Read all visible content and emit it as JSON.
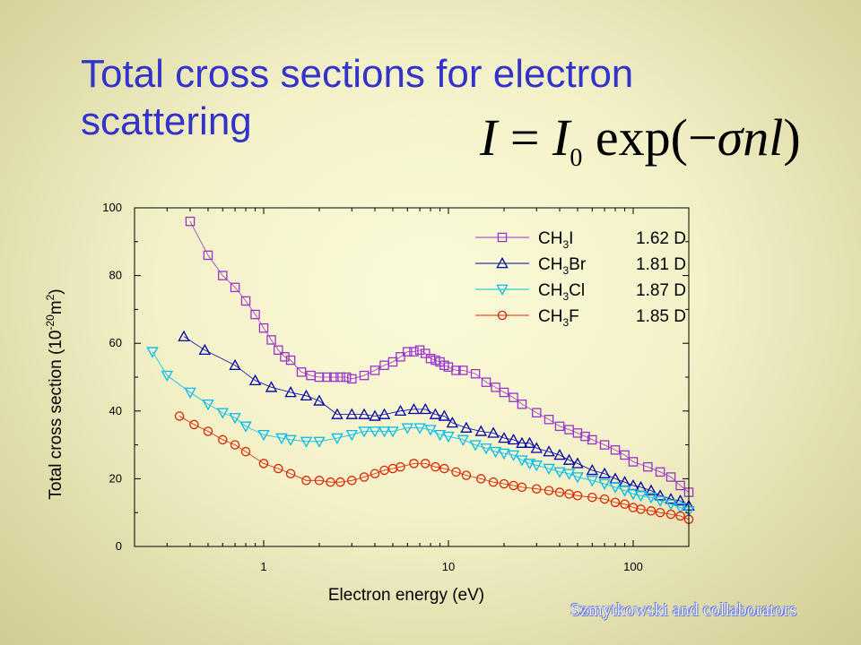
{
  "slide": {
    "title": "Total cross sections for electron scattering",
    "equation": {
      "lhs": "I",
      "eq": "=",
      "i0": "I",
      "i0_sub": "0",
      "func": "exp(",
      "minus": "−",
      "sigma": "σ",
      "n": "n",
      "l": "l",
      "close": ")"
    },
    "credit": "Szmytkowski and collaborators"
  },
  "chart_data": {
    "type": "scatter",
    "xlabel": "Electron energy (eV)",
    "ylabel": "Total cross section (10",
    "ylabel_exp": "-20",
    "ylabel_unit": "m",
    "ylabel_unit_exp": "2",
    "ylabel_close": ")",
    "xscale": "log",
    "xlim": [
      0.2,
      200
    ],
    "ylim": [
      0,
      100
    ],
    "xticks": [
      1,
      10,
      100
    ],
    "xtick_labels": [
      "1",
      "10",
      "100"
    ],
    "yticks": [
      0,
      20,
      40,
      60,
      80,
      100
    ],
    "ytick_labels": [
      "0",
      "20",
      "40",
      "60",
      "80",
      "100"
    ],
    "grid": false,
    "legend_position": "top-right",
    "series": [
      {
        "name": "CH3I",
        "name_main": "CH",
        "name_sub": "3",
        "name_rest": "I",
        "dipole": "1.62 D",
        "marker": "square",
        "color": "#9933cc",
        "x": [
          0.4,
          0.5,
          0.6,
          0.7,
          0.8,
          0.9,
          1.0,
          1.1,
          1.2,
          1.3,
          1.4,
          1.6,
          1.8,
          2.0,
          2.2,
          2.4,
          2.6,
          2.8,
          3.0,
          3.5,
          4.0,
          4.5,
          5.0,
          5.5,
          6.0,
          6.5,
          7.0,
          7.5,
          8.0,
          8.5,
          9.0,
          9.5,
          10,
          11,
          12,
          14,
          16,
          18,
          20,
          22.5,
          25,
          30,
          35,
          40,
          45,
          50,
          55,
          60,
          70,
          80,
          90,
          100,
          120,
          140,
          160,
          180,
          200
        ],
        "y": [
          96,
          86,
          80,
          76.5,
          72.5,
          68.5,
          64.5,
          61,
          58,
          56,
          55,
          51.5,
          50.5,
          50,
          50,
          50,
          50,
          50,
          49.5,
          50.5,
          52,
          53.5,
          54.5,
          56,
          57.5,
          57.5,
          58,
          57,
          55.5,
          55,
          54.5,
          53.5,
          53,
          52,
          52,
          51,
          48.5,
          47,
          45.5,
          44,
          42,
          39.5,
          37.5,
          35.5,
          34.5,
          33.5,
          32.5,
          31.5,
          30,
          28.5,
          27,
          25,
          23.5,
          22,
          20.5,
          18,
          16
        ]
      },
      {
        "name": "CH3Br",
        "name_main": "CH",
        "name_sub": "3",
        "name_rest": "Br",
        "dipole": "1.81 D",
        "marker": "triangle-up",
        "color": "#0000aa",
        "x": [
          0.37,
          0.48,
          0.7,
          0.9,
          1.1,
          1.4,
          1.7,
          2.0,
          2.5,
          3.0,
          3.5,
          4.0,
          4.5,
          5.5,
          6.5,
          7.5,
          8.5,
          9.5,
          10.5,
          12.5,
          15,
          17.5,
          20,
          22.5,
          25,
          27.5,
          30,
          35,
          40,
          45,
          50,
          60,
          70,
          80,
          90,
          100,
          110,
          125,
          140,
          160,
          180,
          200
        ],
        "y": [
          62,
          58,
          53.5,
          49,
          47,
          45.5,
          44.5,
          43,
          39,
          39,
          39,
          38.5,
          39,
          40,
          40.5,
          40.5,
          39,
          38.5,
          36.5,
          35,
          34,
          33.5,
          32,
          31.5,
          30.5,
          30.5,
          29,
          28,
          27,
          25.5,
          24.5,
          22.5,
          21.5,
          20,
          19,
          18,
          17.5,
          16.5,
          15,
          14,
          13.5,
          12
        ]
      },
      {
        "name": "CH3Cl",
        "name_main": "CH",
        "name_sub": "3",
        "name_rest": "Cl",
        "dipole": "1.87 D",
        "marker": "triangle-down",
        "color": "#00bbee",
        "x": [
          0.25,
          0.3,
          0.4,
          0.5,
          0.6,
          0.7,
          0.8,
          1.0,
          1.25,
          1.4,
          1.7,
          2.0,
          2.5,
          3.0,
          3.5,
          4.0,
          4.5,
          5.0,
          6.0,
          7.0,
          8.0,
          9.0,
          10,
          12,
          14,
          16,
          18,
          20,
          22.5,
          25,
          27.5,
          30,
          35,
          40,
          45,
          50,
          60,
          70,
          80,
          90,
          100,
          110,
          125,
          140,
          160,
          180,
          200
        ],
        "y": [
          57.5,
          50.5,
          45.5,
          42,
          39.5,
          38,
          35.5,
          33,
          32,
          31.5,
          31,
          31,
          32,
          33,
          34,
          34,
          34,
          34,
          35,
          35,
          34.5,
          33,
          32.5,
          31.5,
          30,
          29,
          28,
          27.5,
          27,
          25.5,
          24.5,
          24,
          23,
          22,
          21.5,
          20.5,
          19.5,
          18.5,
          17.5,
          16.5,
          15.5,
          15,
          14.5,
          13.5,
          12.5,
          11.5,
          10.5
        ]
      },
      {
        "name": "CH3F",
        "name_main": "CH",
        "name_sub": "3",
        "name_rest": "F",
        "dipole": "1.85 D",
        "marker": "circle",
        "color": "#dd2200",
        "x": [
          0.35,
          0.42,
          0.5,
          0.6,
          0.7,
          0.8,
          1.0,
          1.2,
          1.4,
          1.7,
          2.0,
          2.3,
          2.6,
          3.0,
          3.5,
          4.0,
          4.5,
          5.0,
          5.5,
          6.5,
          7.5,
          8.5,
          9.5,
          11,
          12.5,
          15,
          17.5,
          20,
          22.5,
          25,
          30,
          35,
          40,
          45,
          50,
          60,
          70,
          80,
          90,
          100,
          110,
          125,
          140,
          160,
          180,
          200
        ],
        "y": [
          38.5,
          36,
          34,
          31.5,
          30,
          28,
          24.5,
          23,
          21.5,
          19.5,
          19.5,
          19,
          19,
          19.5,
          20.5,
          21.5,
          22.5,
          23,
          23.5,
          24.5,
          24.5,
          23.5,
          23,
          22,
          21,
          20,
          19,
          18.5,
          18,
          17.5,
          17,
          16.5,
          16,
          15.5,
          15,
          14.5,
          14,
          13,
          12.5,
          11.5,
          11,
          10.5,
          10,
          9.5,
          9,
          8
        ]
      }
    ]
  }
}
